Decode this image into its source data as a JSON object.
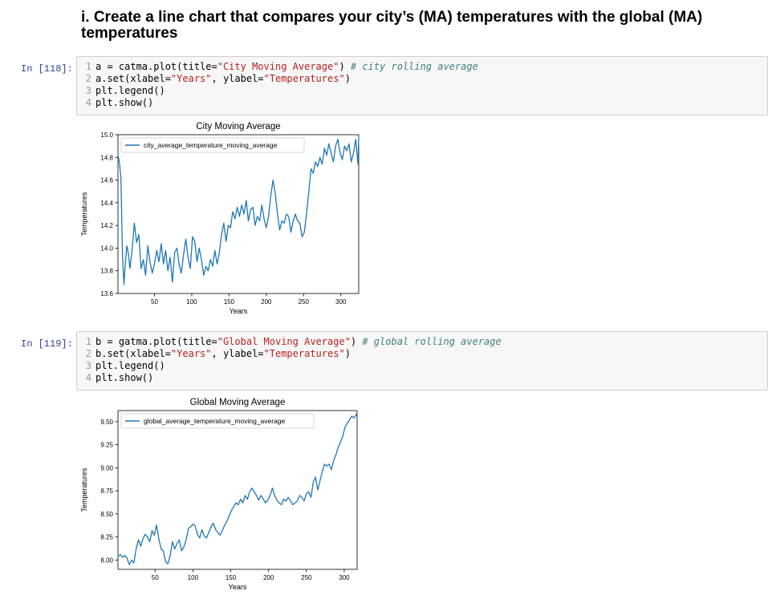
{
  "heading": "i. Create a line chart that compares your city’s (MA) temperatures with the global (MA) temperatures",
  "cells": [
    {
      "prompt": "In [118]:",
      "lines": [
        {
          "n": "1",
          "pre": "a = catma.plot(title=",
          "str1": "\"City Moving Average\"",
          "post": ") ",
          "comment": "# city rolling average"
        },
        {
          "n": "2",
          "pre": "a.set(xlabel=",
          "str1": "\"Years\"",
          "mid": ", ylabel=",
          "str2": "\"Temperatures\"",
          "post": ")"
        },
        {
          "n": "3",
          "pre": "plt.legend()"
        },
        {
          "n": "4",
          "pre": "plt.show()"
        }
      ]
    },
    {
      "prompt": "In [119]:",
      "lines": [
        {
          "n": "1",
          "pre": "b = gatma.plot(title=",
          "str1": "\"Global Moving Average\"",
          "post": ") ",
          "comment": "# global rolling average"
        },
        {
          "n": "2",
          "pre": "b.set(xlabel=",
          "str1": "\"Years\"",
          "mid": ", ylabel=",
          "str2": "\"Temperatures\"",
          "post": ")"
        },
        {
          "n": "3",
          "pre": "plt.legend()"
        },
        {
          "n": "4",
          "pre": "plt.show()"
        }
      ]
    }
  ],
  "colors": {
    "line": "#1f77b4",
    "prompt": "#303f9f",
    "string": "#ba2121",
    "comment": "#408080"
  },
  "chart_data": [
    {
      "type": "line",
      "title": "City Moving Average",
      "xlabel": "Years",
      "ylabel": "Temperatures",
      "legend": "upper-left",
      "grid": false,
      "xlim": [
        1,
        324
      ],
      "ylim": [
        13.6,
        15.0
      ],
      "xticks": [
        50,
        100,
        150,
        200,
        250,
        300
      ],
      "yticks": [
        13.6,
        13.8,
        14.0,
        14.2,
        14.4,
        14.6,
        14.8,
        15.0
      ],
      "ytick_labels": [
        "13.6",
        "13.8",
        "14.0",
        "14.2",
        "14.4",
        "14.6",
        "14.8",
        "15.0"
      ],
      "series": [
        {
          "name": "city_average_temperature_moving_average",
          "x": [
            1,
            3,
            5,
            7,
            9,
            11,
            13,
            15,
            17,
            20,
            23,
            26,
            29,
            32,
            35,
            38,
            41,
            44,
            47,
            50,
            53,
            56,
            59,
            62,
            65,
            68,
            71,
            74,
            77,
            80,
            83,
            86,
            89,
            92,
            95,
            98,
            101,
            104,
            107,
            110,
            113,
            116,
            119,
            122,
            125,
            128,
            131,
            134,
            137,
            140,
            143,
            146,
            149,
            152,
            155,
            158,
            161,
            164,
            167,
            170,
            173,
            176,
            179,
            182,
            185,
            188,
            191,
            194,
            197,
            200,
            203,
            206,
            209,
            212,
            215,
            218,
            221,
            224,
            227,
            230,
            233,
            236,
            239,
            242,
            245,
            248,
            251,
            254,
            257,
            260,
            263,
            266,
            269,
            272,
            275,
            278,
            281,
            284,
            287,
            290,
            293,
            296,
            299,
            302,
            305,
            308,
            311,
            314,
            317,
            320,
            323,
            324
          ],
          "values": [
            14.82,
            14.75,
            14.62,
            13.95,
            13.68,
            13.88,
            14.02,
            13.95,
            13.82,
            13.98,
            14.22,
            14.05,
            14.12,
            13.82,
            13.9,
            13.76,
            14.02,
            13.88,
            13.78,
            13.86,
            13.98,
            13.88,
            14.04,
            13.86,
            13.98,
            13.8,
            13.92,
            13.7,
            13.96,
            14.0,
            13.86,
            13.78,
            13.94,
            14.08,
            13.92,
            13.82,
            14.1,
            14.06,
            13.88,
            14.0,
            13.9,
            13.76,
            13.84,
            13.8,
            13.9,
            13.84,
            13.98,
            13.86,
            13.96,
            14.12,
            14.22,
            14.06,
            14.2,
            14.18,
            14.32,
            14.26,
            14.36,
            14.28,
            14.38,
            14.3,
            14.42,
            14.24,
            14.34,
            14.36,
            14.2,
            14.28,
            14.24,
            14.38,
            14.26,
            14.18,
            14.28,
            14.46,
            14.6,
            14.48,
            14.3,
            14.16,
            14.24,
            14.22,
            14.3,
            14.28,
            14.14,
            14.24,
            14.3,
            14.24,
            14.22,
            14.1,
            14.14,
            14.3,
            14.5,
            14.7,
            14.66,
            14.76,
            14.72,
            14.8,
            14.74,
            14.88,
            14.82,
            14.92,
            14.84,
            14.76,
            14.9,
            14.96,
            14.84,
            14.78,
            14.9,
            14.86,
            14.92,
            14.76,
            14.84,
            14.96,
            14.74,
            14.98
          ]
        }
      ]
    },
    {
      "type": "line",
      "title": "Global Moving Average",
      "xlabel": "Years",
      "ylabel": "Temperatures",
      "legend": "upper-left",
      "grid": false,
      "xlim": [
        1,
        317
      ],
      "ylim": [
        7.9,
        9.62
      ],
      "xticks": [
        50,
        100,
        150,
        200,
        250,
        300
      ],
      "yticks": [
        8.0,
        8.25,
        8.5,
        8.75,
        9.0,
        9.25,
        9.5
      ],
      "ytick_labels": [
        "8.00",
        "8.25",
        "8.50",
        "8.75",
        "9.00",
        "9.25",
        "9.50"
      ],
      "series": [
        {
          "name": "global_average_temperature_moving_average",
          "x": [
            1,
            4,
            7,
            10,
            13,
            16,
            19,
            22,
            25,
            28,
            31,
            34,
            37,
            40,
            43,
            46,
            49,
            52,
            55,
            58,
            61,
            64,
            67,
            70,
            73,
            76,
            79,
            82,
            85,
            88,
            91,
            94,
            97,
            100,
            103,
            106,
            109,
            112,
            115,
            118,
            121,
            124,
            127,
            130,
            133,
            136,
            139,
            142,
            145,
            148,
            151,
            154,
            157,
            160,
            163,
            166,
            169,
            172,
            175,
            178,
            181,
            184,
            187,
            190,
            193,
            196,
            199,
            202,
            205,
            208,
            211,
            214,
            217,
            220,
            223,
            226,
            229,
            232,
            235,
            238,
            241,
            244,
            247,
            250,
            253,
            256,
            259,
            262,
            265,
            268,
            271,
            274,
            277,
            280,
            283,
            286,
            289,
            292,
            295,
            298,
            301,
            304,
            307,
            310,
            313,
            316,
            317
          ],
          "values": [
            8.04,
            8.06,
            8.03,
            8.05,
            8.02,
            7.95,
            8.0,
            7.97,
            8.12,
            8.22,
            8.15,
            8.23,
            8.28,
            8.25,
            8.2,
            8.32,
            8.27,
            8.38,
            8.23,
            8.12,
            8.1,
            7.98,
            7.96,
            8.05,
            8.2,
            8.12,
            8.18,
            8.22,
            8.1,
            8.14,
            8.22,
            8.34,
            8.36,
            8.39,
            8.37,
            8.28,
            8.24,
            8.33,
            8.26,
            8.24,
            8.3,
            8.36,
            8.4,
            8.33,
            8.3,
            8.27,
            8.32,
            8.38,
            8.42,
            8.48,
            8.54,
            8.58,
            8.62,
            8.6,
            8.66,
            8.62,
            8.7,
            8.66,
            8.74,
            8.78,
            8.74,
            8.7,
            8.65,
            8.7,
            8.66,
            8.62,
            8.65,
            8.7,
            8.78,
            8.7,
            8.65,
            8.62,
            8.6,
            8.66,
            8.64,
            8.68,
            8.64,
            8.6,
            8.62,
            8.64,
            8.7,
            8.68,
            8.64,
            8.72,
            8.74,
            8.68,
            8.84,
            8.9,
            8.76,
            8.86,
            8.96,
            9.04,
            9.02,
            9.04,
            8.98,
            9.08,
            9.14,
            9.22,
            9.28,
            9.34,
            9.44,
            9.48,
            9.52,
            9.56,
            9.54,
            9.58,
            9.55
          ]
        }
      ]
    }
  ]
}
